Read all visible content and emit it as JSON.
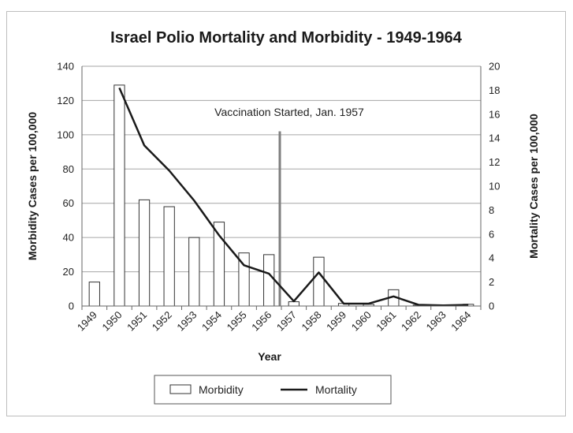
{
  "chart_data": {
    "type": "bar",
    "title": "Israel Polio Mortality and Morbidity - 1949-1964",
    "xlabel": "Year",
    "ylabel": "Morbidity Cases per 100,000",
    "ylabel_right": "Mortality Cases per 100,000",
    "categories": [
      "1949",
      "1950",
      "1951",
      "1952",
      "1953",
      "1954",
      "1955",
      "1956",
      "1957",
      "1958",
      "1959",
      "1960",
      "1961",
      "1962",
      "1963",
      "1964"
    ],
    "ylim": [
      0,
      140
    ],
    "ylim_right": [
      0,
      20
    ],
    "yticks": [
      "0",
      "20",
      "40",
      "60",
      "80",
      "100",
      "120",
      "140"
    ],
    "yticks_right": [
      "0",
      "2",
      "4",
      "6",
      "8",
      "10",
      "12",
      "14",
      "16",
      "18",
      "20"
    ],
    "grid": true,
    "legend_position": "bottom",
    "series": [
      {
        "name": "Morbidity",
        "type": "bar",
        "axis": "left",
        "values": [
          14,
          129,
          62,
          58,
          40,
          49,
          31,
          30,
          2.5,
          28.5,
          1.5,
          1,
          9.5,
          0.5,
          0.5,
          1
        ]
      },
      {
        "name": "Mortality",
        "type": "line",
        "axis": "right",
        "values": [
          null,
          18.2,
          13.4,
          11.3,
          8.8,
          5.9,
          3.4,
          2.7,
          0.4,
          2.8,
          0.2,
          0.2,
          0.8,
          0.1,
          0.05,
          0.1
        ]
      }
    ],
    "annotation": {
      "text": "Vaccination Started, Jan. 1957",
      "x": "1957"
    },
    "colors": {
      "bar_fill": "#ffffff",
      "bar_stroke": "#333333",
      "line": "#1a1a1a",
      "marker_line": "#7f7f7f",
      "grid": "#a6a6a6"
    }
  }
}
